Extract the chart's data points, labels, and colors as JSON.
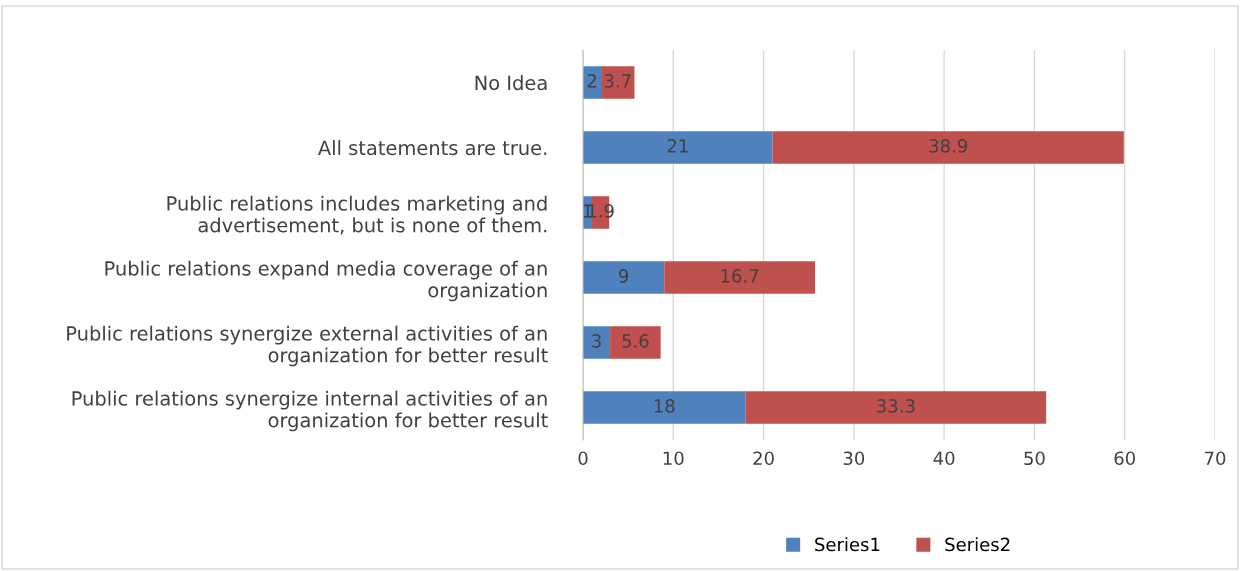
{
  "chart_data": {
    "type": "bar",
    "orientation": "horizontal",
    "stacked": true,
    "categories": [
      "No Idea",
      "All statements are true.",
      "Public relations includes marketing and\nadvertisement, but is none of them.",
      "Public relations expand media coverage of an\norganization",
      "Public relations synergize external activities of an\norganization for better result",
      "Public relations synergize internal activities of an\norganization for better result"
    ],
    "series": [
      {
        "name": "Series1",
        "color": "#4f81bd",
        "values": [
          2,
          21,
          1,
          9,
          3,
          18
        ]
      },
      {
        "name": "Series2",
        "color": "#c0504d",
        "values": [
          3.7,
          38.9,
          1.9,
          16.7,
          5.6,
          33.3
        ]
      }
    ],
    "xlim": [
      0,
      70
    ],
    "xticks": [
      0,
      10,
      20,
      30,
      40,
      50,
      60,
      70
    ],
    "grid": "x",
    "legend": "bottom",
    "data_labels": true
  }
}
